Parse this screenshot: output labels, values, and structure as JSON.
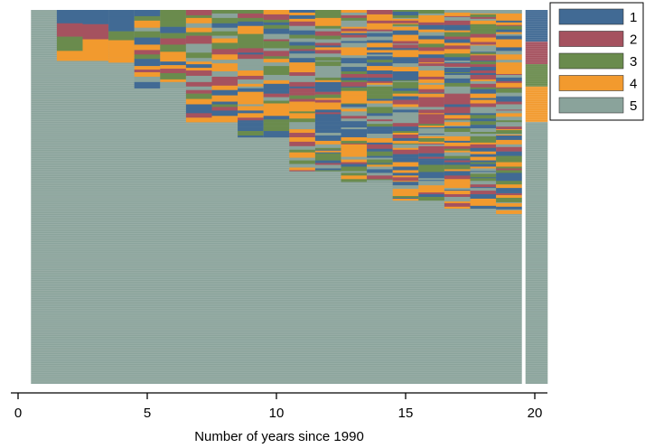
{
  "chart_data": {
    "type": "heatmap",
    "subtype": "sequence-index-plot",
    "title": "",
    "xlabel": "Number of years since 1990",
    "ylabel": "",
    "xlim": [
      0,
      20
    ],
    "x_ticks": [
      "0",
      "5",
      "10",
      "15",
      "20"
    ],
    "x_tick_values": [
      0,
      5,
      10,
      15,
      20
    ],
    "year_columns": [
      1,
      2,
      3,
      4,
      5,
      6,
      7,
      8,
      9,
      10,
      11,
      12,
      13,
      14,
      15,
      16,
      17,
      18,
      19
    ],
    "summary_column_x": 20,
    "grid": false,
    "legend_position": "right-top",
    "states": [
      {
        "code": 1,
        "label": "1",
        "color": "#416a94"
      },
      {
        "code": 2,
        "label": "2",
        "color": "#a5525f"
      },
      {
        "code": 3,
        "label": "3",
        "color": "#6a8b4d"
      },
      {
        "code": 4,
        "label": "4",
        "color": "#f29a2e"
      },
      {
        "code": 5,
        "label": "5",
        "color": "#8aa39b"
      }
    ],
    "rows_total": 420,
    "block_profile": [
      {
        "year": 1,
        "share_with_states_1_to_4": 0.0
      },
      {
        "year": 2,
        "share_with_states_1_to_4": 0.135
      },
      {
        "year": 3,
        "share_with_states_1_to_4": 0.135
      },
      {
        "year": 4,
        "share_with_states_1_to_4": 0.14
      },
      {
        "year": 5,
        "share_with_states_1_to_4": 0.21
      },
      {
        "year": 6,
        "share_with_states_1_to_4": 0.21
      },
      {
        "year": 7,
        "share_with_states_1_to_4": 0.3
      },
      {
        "year": 8,
        "share_with_states_1_to_4": 0.3
      },
      {
        "year": 9,
        "share_with_states_1_to_4": 0.34
      },
      {
        "year": 10,
        "share_with_states_1_to_4": 0.34
      },
      {
        "year": 11,
        "share_with_states_1_to_4": 0.43
      },
      {
        "year": 12,
        "share_with_states_1_to_4": 0.43
      },
      {
        "year": 13,
        "share_with_states_1_to_4": 0.46
      },
      {
        "year": 14,
        "share_with_states_1_to_4": 0.46
      },
      {
        "year": 15,
        "share_with_states_1_to_4": 0.51
      },
      {
        "year": 16,
        "share_with_states_1_to_4": 0.51
      },
      {
        "year": 17,
        "share_with_states_1_to_4": 0.53
      },
      {
        "year": 18,
        "share_with_states_1_to_4": 0.53
      },
      {
        "year": 19,
        "share_with_states_1_to_4": 0.545
      }
    ],
    "summary_distribution": [
      {
        "state": 1,
        "share": 0.085
      },
      {
        "state": 2,
        "share": 0.06
      },
      {
        "state": 3,
        "share": 0.06
      },
      {
        "state": 4,
        "share": 0.095
      },
      {
        "state": 5,
        "share": 0.7
      }
    ]
  }
}
